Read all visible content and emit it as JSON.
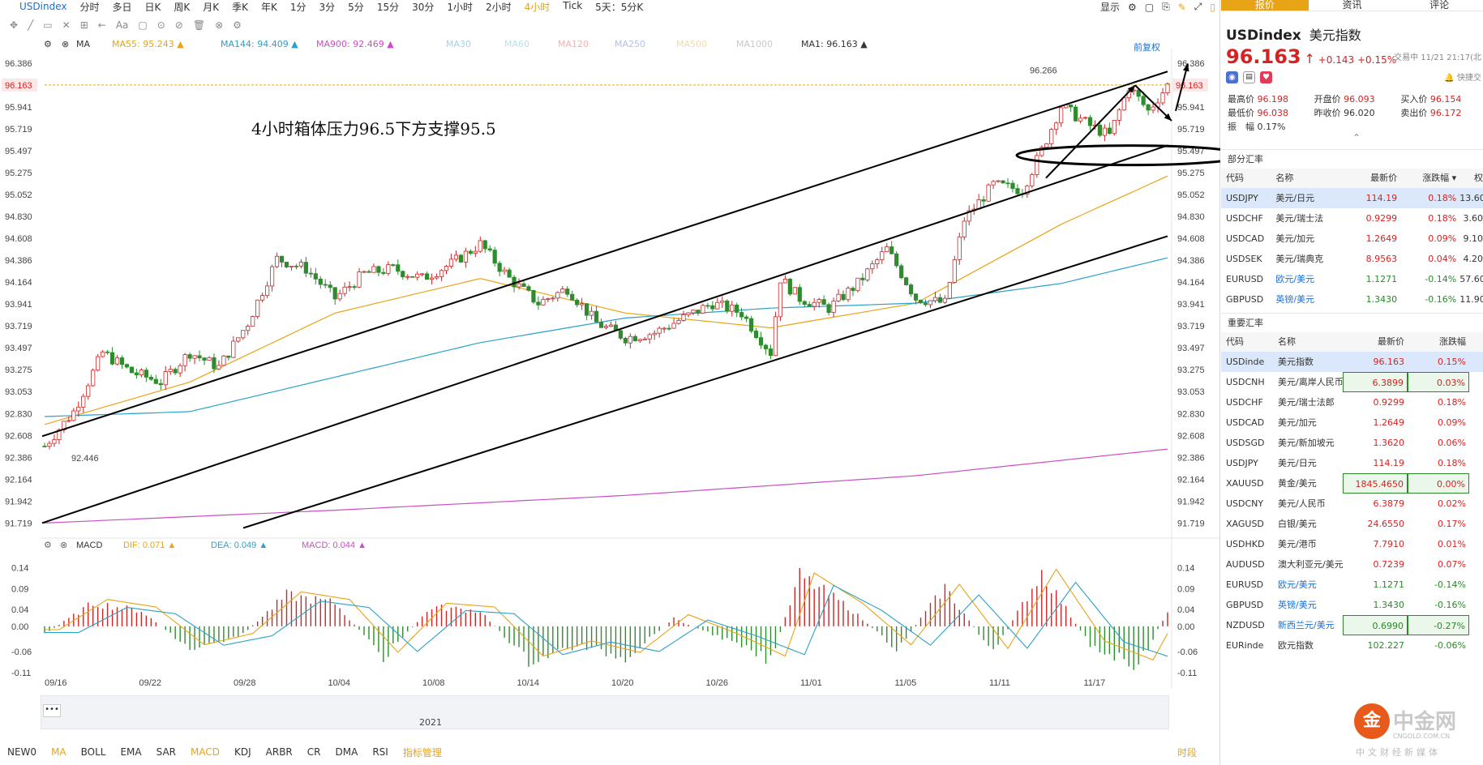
{
  "topbar": {
    "symbol": "USDindex",
    "periods": [
      "分时",
      "多日",
      "日K",
      "周K",
      "月K",
      "季K",
      "年K",
      "1分",
      "3分",
      "5分",
      "15分",
      "30分",
      "1小时",
      "2小时",
      "4小时",
      "Tick",
      "5天：5分K"
    ],
    "active_period": "4小时",
    "display_label": "显示"
  },
  "toolbar": {
    "items": [
      "✥",
      "╱",
      "▭",
      "✕",
      "⊞",
      "←",
      "Aa",
      "▢",
      "⊙",
      "⊘",
      "🗑",
      "⊗",
      "⚙"
    ]
  },
  "legend": {
    "ma_label": "MA",
    "items": [
      {
        "text": "MA55: 95.243 ▲",
        "color": "#e8a317"
      },
      {
        "text": "MA144: 94.409 ▲",
        "color": "#2aa1c9"
      },
      {
        "text": "MA900: 92.469 ▲",
        "color": "#c94fc4"
      },
      {
        "text": "MA30",
        "color": "#9fd3ec"
      },
      {
        "text": "MA60",
        "color": "#b8e0f0"
      },
      {
        "text": "MA120",
        "color": "#f5b0b0"
      },
      {
        "text": "MA250",
        "color": "#b0c0e8"
      },
      {
        "text": "MA500",
        "color": "#f2d9a8"
      },
      {
        "text": "MA1000",
        "color": "#c8c8c8"
      },
      {
        "text": "MA1: 96.163 ▲",
        "color": "#333333"
      }
    ],
    "fuquan": "前复权"
  },
  "annotation": "4小时箱体压力96.5下方支撑95.5",
  "price_axis": {
    "labels": [
      "96.386",
      "96.163",
      "95.941",
      "95.719",
      "95.497",
      "95.275",
      "95.052",
      "94.830",
      "94.608",
      "94.386",
      "94.164",
      "93.941",
      "93.719",
      "93.497",
      "93.275",
      "93.053",
      "92.830",
      "92.608",
      "92.386",
      "92.164",
      "91.942",
      "91.719"
    ],
    "current": "96.163",
    "high_mark": "96.266",
    "low_mark": "92.446"
  },
  "macd": {
    "label": "MACD",
    "dif": "DIF: 0.071 ▲",
    "dea": "DEA: 0.049 ▲",
    "macd": "MACD: 0.044 ▲",
    "axis": [
      "0.14",
      "0.09",
      "0.04",
      "0.00",
      "-0.06",
      "-0.11"
    ]
  },
  "dates": [
    "09/16",
    "09/22",
    "09/28",
    "10/04",
    "10/08",
    "10/14",
    "10/20",
    "10/26",
    "11/01",
    "11/05",
    "11/11",
    "11/17"
  ],
  "navigator": {
    "year": "2021",
    "dots": "•••"
  },
  "bottom": {
    "items": [
      "NEW0",
      "MA",
      "BOLL",
      "EMA",
      "SAR",
      "MACD",
      "KDJ",
      "ARBR",
      "CR",
      "DMA",
      "RSI"
    ],
    "active": [
      "MA",
      "MACD"
    ],
    "manage": "指标管理",
    "timeframe": "时段"
  },
  "panel": {
    "tabs": [
      "报价",
      "资讯",
      "评论"
    ],
    "symbol": "USDindex",
    "name": "美元指数",
    "price": "96.163",
    "arrow": "↑",
    "change": "+0.143",
    "change_pct": "+0.15%",
    "time": "交易中 11/21 21:17(北",
    "alert": "快捷交",
    "stats": [
      [
        {
          "k": "最高价",
          "v": "96.198",
          "c": "red"
        },
        {
          "k": "开盘价",
          "v": "96.093",
          "c": "red"
        },
        {
          "k": "买入价",
          "v": "96.154",
          "c": "red"
        }
      ],
      [
        {
          "k": "最低价",
          "v": "96.038",
          "c": "red"
        },
        {
          "k": "昨收价",
          "v": "96.020",
          "c": ""
        },
        {
          "k": "卖出价",
          "v": "96.172",
          "c": "red"
        }
      ],
      [
        {
          "k": "振　幅",
          "v": "0.17%",
          "c": ""
        }
      ]
    ],
    "section1": {
      "title": "部分汇率",
      "headers": [
        "代码",
        "名称",
        "最新价",
        "涨跌幅 ▾",
        "权"
      ],
      "rows": [
        {
          "code": "USDJPY",
          "name": "美元/日元",
          "price": "114.19",
          "chg": "0.18%",
          "extra": "13.60",
          "color": "red",
          "sel": true,
          "eye": true
        },
        {
          "code": "USDCHF",
          "name": "美元/瑞士法",
          "price": "0.9299",
          "chg": "0.18%",
          "extra": "3.60",
          "color": "red"
        },
        {
          "code": "USDCAD",
          "name": "美元/加元",
          "price": "1.2649",
          "chg": "0.09%",
          "extra": "9.10",
          "color": "red"
        },
        {
          "code": "USDSEK",
          "name": "美元/瑞典克",
          "price": "8.9563",
          "chg": "0.04%",
          "extra": "4.20",
          "color": "red"
        },
        {
          "code": "EURUSD",
          "name": "欧元/美元",
          "price": "1.1271",
          "chg": "-0.14%",
          "extra": "57.60",
          "color": "green"
        },
        {
          "code": "GBPUSD",
          "name": "英镑/美元",
          "price": "1.3430",
          "chg": "-0.16%",
          "extra": "11.90",
          "color": "green"
        }
      ]
    },
    "section2": {
      "title": "重要汇率",
      "headers": [
        "代码",
        "名称",
        "最新价",
        "涨跌幅"
      ],
      "rows": [
        {
          "code": "USDinde",
          "name": "美元指数",
          "price": "96.163",
          "chg": "0.15%",
          "color": "red",
          "sel": true,
          "eye": true
        },
        {
          "code": "USDCNH",
          "name": "美元/离岸人民币",
          "price": "6.3899",
          "chg": "0.03%",
          "color": "red",
          "box": true
        },
        {
          "code": "USDCHF",
          "name": "美元/瑞士法郎",
          "price": "0.9299",
          "chg": "0.18%",
          "color": "red"
        },
        {
          "code": "USDCAD",
          "name": "美元/加元",
          "price": "1.2649",
          "chg": "0.09%",
          "color": "red"
        },
        {
          "code": "USDSGD",
          "name": "美元/新加坡元",
          "price": "1.3620",
          "chg": "0.06%",
          "color": "red"
        },
        {
          "code": "USDJPY",
          "name": "美元/日元",
          "price": "114.19",
          "chg": "0.18%",
          "color": "red"
        },
        {
          "code": "XAUUSD",
          "name": "黄金/美元",
          "price": "1845.4650",
          "chg": "0.00%",
          "color": "red",
          "box": true
        },
        {
          "code": "USDCNY",
          "name": "美元/人民币",
          "price": "6.3879",
          "chg": "0.02%",
          "color": "red"
        },
        {
          "code": "XAGUSD",
          "name": "白银/美元",
          "price": "24.6550",
          "chg": "0.17%",
          "color": "red"
        },
        {
          "code": "USDHKD",
          "name": "美元/港币",
          "price": "7.7910",
          "chg": "0.01%",
          "color": "red"
        },
        {
          "code": "AUDUSD",
          "name": "澳大利亚元/美元",
          "price": "0.7239",
          "chg": "0.07%",
          "color": "red"
        },
        {
          "code": "EURUSD",
          "name": "欧元/美元",
          "price": "1.1271",
          "chg": "-0.14%",
          "color": "green"
        },
        {
          "code": "GBPUSD",
          "name": "英镑/美元",
          "price": "1.3430",
          "chg": "-0.16%",
          "color": "green"
        },
        {
          "code": "NZDUSD",
          "name": "新西兰元/美元",
          "price": "0.6990",
          "chg": "-0.27%",
          "color": "green",
          "box": true
        },
        {
          "code": "EURinde",
          "name": "欧元指数",
          "price": "102.227",
          "chg": "-0.06%",
          "color": "green"
        }
      ]
    }
  },
  "logo": {
    "mark": "金",
    "name": "中金网",
    "url": "CNGOLD.COM.CN",
    "slogan": "中文财经新媒体"
  },
  "chart_data": [
    {
      "type": "candlestick",
      "title": "USDindex 4小时",
      "ylim": [
        91.6,
        96.45
      ],
      "yticks": [
        96.386,
        96.163,
        95.941,
        95.719,
        95.497,
        95.275,
        95.052,
        94.83,
        94.608,
        94.386,
        94.164,
        93.941,
        93.719,
        93.497,
        93.275,
        93.053,
        92.83,
        92.608,
        92.386,
        92.164,
        91.942,
        91.719
      ],
      "x_labels": [
        "09/16",
        "09/22",
        "09/28",
        "10/04",
        "10/08",
        "10/14",
        "10/20",
        "10/26",
        "11/01",
        "11/05",
        "11/11",
        "11/17"
      ],
      "close_path": [
        [
          0,
          92.5
        ],
        [
          6,
          92.85
        ],
        [
          12,
          93.45
        ],
        [
          18,
          93.25
        ],
        [
          24,
          93.15
        ],
        [
          30,
          93.45
        ],
        [
          36,
          93.3
        ],
        [
          42,
          93.75
        ],
        [
          48,
          94.4
        ],
        [
          54,
          94.3
        ],
        [
          60,
          94.0
        ],
        [
          66,
          94.25
        ],
        [
          72,
          94.3
        ],
        [
          78,
          94.2
        ],
        [
          84,
          94.35
        ],
        [
          90,
          94.55
        ],
        [
          96,
          94.2
        ],
        [
          102,
          93.95
        ],
        [
          108,
          94.1
        ],
        [
          114,
          93.75
        ],
        [
          120,
          93.6
        ],
        [
          126,
          93.65
        ],
        [
          132,
          93.8
        ],
        [
          138,
          93.95
        ],
        [
          144,
          93.85
        ],
        [
          150,
          93.45
        ],
        [
          152,
          94.2
        ],
        [
          156,
          94.0
        ],
        [
          162,
          93.9
        ],
        [
          168,
          94.15
        ],
        [
          174,
          94.5
        ],
        [
          180,
          94.0
        ],
        [
          186,
          93.95
        ],
        [
          190,
          94.8
        ],
        [
          196,
          95.15
        ],
        [
          202,
          95.1
        ],
        [
          206,
          95.5
        ],
        [
          210,
          95.95
        ],
        [
          216,
          95.75
        ],
        [
          220,
          95.65
        ],
        [
          224,
          96.15
        ],
        [
          228,
          95.9
        ],
        [
          232,
          96.16
        ]
      ],
      "series": [
        {
          "name": "MA55",
          "values_approx": [
            [
              0,
              92.72
            ],
            [
              30,
              93.15
            ],
            [
              60,
              93.85
            ],
            [
              90,
              94.2
            ],
            [
              120,
              93.85
            ],
            [
              150,
              93.7
            ],
            [
              180,
              93.95
            ],
            [
              210,
              94.75
            ],
            [
              232,
              95.24
            ]
          ]
        },
        {
          "name": "MA144",
          "values_approx": [
            [
              0,
              92.8
            ],
            [
              30,
              92.85
            ],
            [
              60,
              93.2
            ],
            [
              90,
              93.55
            ],
            [
              120,
              93.8
            ],
            [
              150,
              93.9
            ],
            [
              180,
              93.95
            ],
            [
              210,
              94.15
            ],
            [
              232,
              94.41
            ]
          ]
        },
        {
          "name": "MA900",
          "values_approx": [
            [
              0,
              91.72
            ],
            [
              60,
              91.85
            ],
            [
              120,
              92.0
            ],
            [
              180,
              92.2
            ],
            [
              232,
              92.47
            ]
          ]
        }
      ],
      "annotations": [
        "96.266",
        "92.446",
        "4小时箱体压力96.5下方支撑95.5"
      ]
    },
    {
      "type": "bar",
      "title": "MACD",
      "ylim": [
        -0.12,
        0.16
      ],
      "yticks": [
        0.14,
        0.09,
        0.04,
        0.0,
        -0.06,
        -0.11
      ],
      "series": [
        {
          "name": "MACD",
          "path": [
            [
              0,
              -0.02
            ],
            [
              10,
              0.06
            ],
            [
              20,
              0.04
            ],
            [
              30,
              -0.06
            ],
            [
              40,
              -0.03
            ],
            [
              50,
              0.08
            ],
            [
              60,
              0.06
            ],
            [
              70,
              -0.08
            ],
            [
              80,
              0.05
            ],
            [
              90,
              0.04
            ],
            [
              100,
              -0.09
            ],
            [
              110,
              -0.05
            ],
            [
              120,
              -0.08
            ],
            [
              130,
              0.02
            ],
            [
              140,
              -0.03
            ],
            [
              150,
              -0.09
            ],
            [
              156,
              0.13
            ],
            [
              166,
              0.05
            ],
            [
              176,
              -0.06
            ],
            [
              186,
              0.1
            ],
            [
              196,
              -0.07
            ],
            [
              206,
              0.14
            ],
            [
              216,
              -0.05
            ],
            [
              226,
              -0.1
            ],
            [
              232,
              0.04
            ]
          ]
        },
        {
          "name": "DIF",
          "last": 0.071
        },
        {
          "name": "DEA",
          "last": 0.049
        }
      ]
    }
  ]
}
